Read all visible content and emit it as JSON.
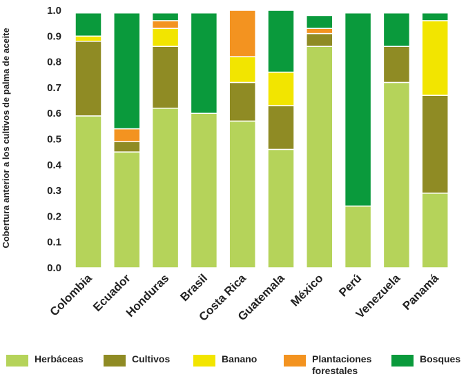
{
  "chart_data": {
    "type": "bar",
    "stacked": true,
    "ylabel": "Cobertura anterior a los cultivos de palma de aceite",
    "xlabel": "",
    "ylim": [
      0,
      1.0
    ],
    "yticks": [
      "0.0",
      "0.1",
      "0.2",
      "0.3",
      "0.4",
      "0.5",
      "0.6",
      "0.7",
      "0.8",
      "0.9",
      "1.0"
    ],
    "categories": [
      "Colombia",
      "Ecuador",
      "Honduras",
      "Brasil",
      "Costa Rica",
      "Guatemala",
      "México",
      "Perú",
      "Venezuela",
      "Panamá"
    ],
    "series": [
      {
        "name": "Herbáceas",
        "color": "#b5d35a",
        "values": [
          0.59,
          0.45,
          0.62,
          0.6,
          0.57,
          0.46,
          0.86,
          0.24,
          0.72,
          0.29
        ]
      },
      {
        "name": "Cultivos",
        "color": "#8f8b24",
        "values": [
          0.29,
          0.04,
          0.24,
          0.0,
          0.15,
          0.17,
          0.05,
          0.0,
          0.14,
          0.38
        ]
      },
      {
        "name": "Banano",
        "color": "#f2e500",
        "values": [
          0.02,
          0.0,
          0.07,
          0.0,
          0.1,
          0.13,
          0.0,
          0.0,
          0.0,
          0.29
        ]
      },
      {
        "name": "Plantaciones forestales",
        "color": "#f39320",
        "values": [
          0.0,
          0.05,
          0.03,
          0.0,
          0.18,
          0.0,
          0.02,
          0.0,
          0.0,
          0.0
        ]
      },
      {
        "name": "Bosques",
        "color": "#0a9a3c",
        "values": [
          0.09,
          0.45,
          0.03,
          0.39,
          0.0,
          0.24,
          0.05,
          0.75,
          0.13,
          0.03
        ]
      }
    ],
    "legend_position": "bottom"
  }
}
